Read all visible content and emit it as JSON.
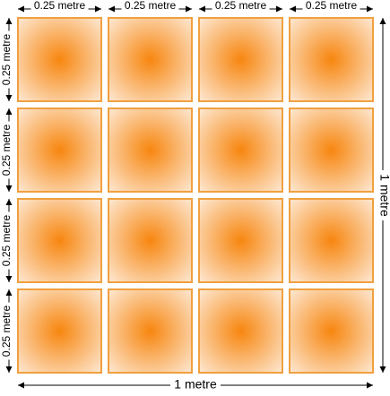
{
  "diagram": {
    "top_labels": [
      "0.25 metre",
      "0.25 metre",
      "0.25 metre",
      "0.25 metre"
    ],
    "left_labels": [
      "0.25 metre",
      "0.25 metre",
      "0.25 metre",
      "0.25 metre"
    ],
    "right_label": "1 metre",
    "bottom_label": "1 metre"
  }
}
